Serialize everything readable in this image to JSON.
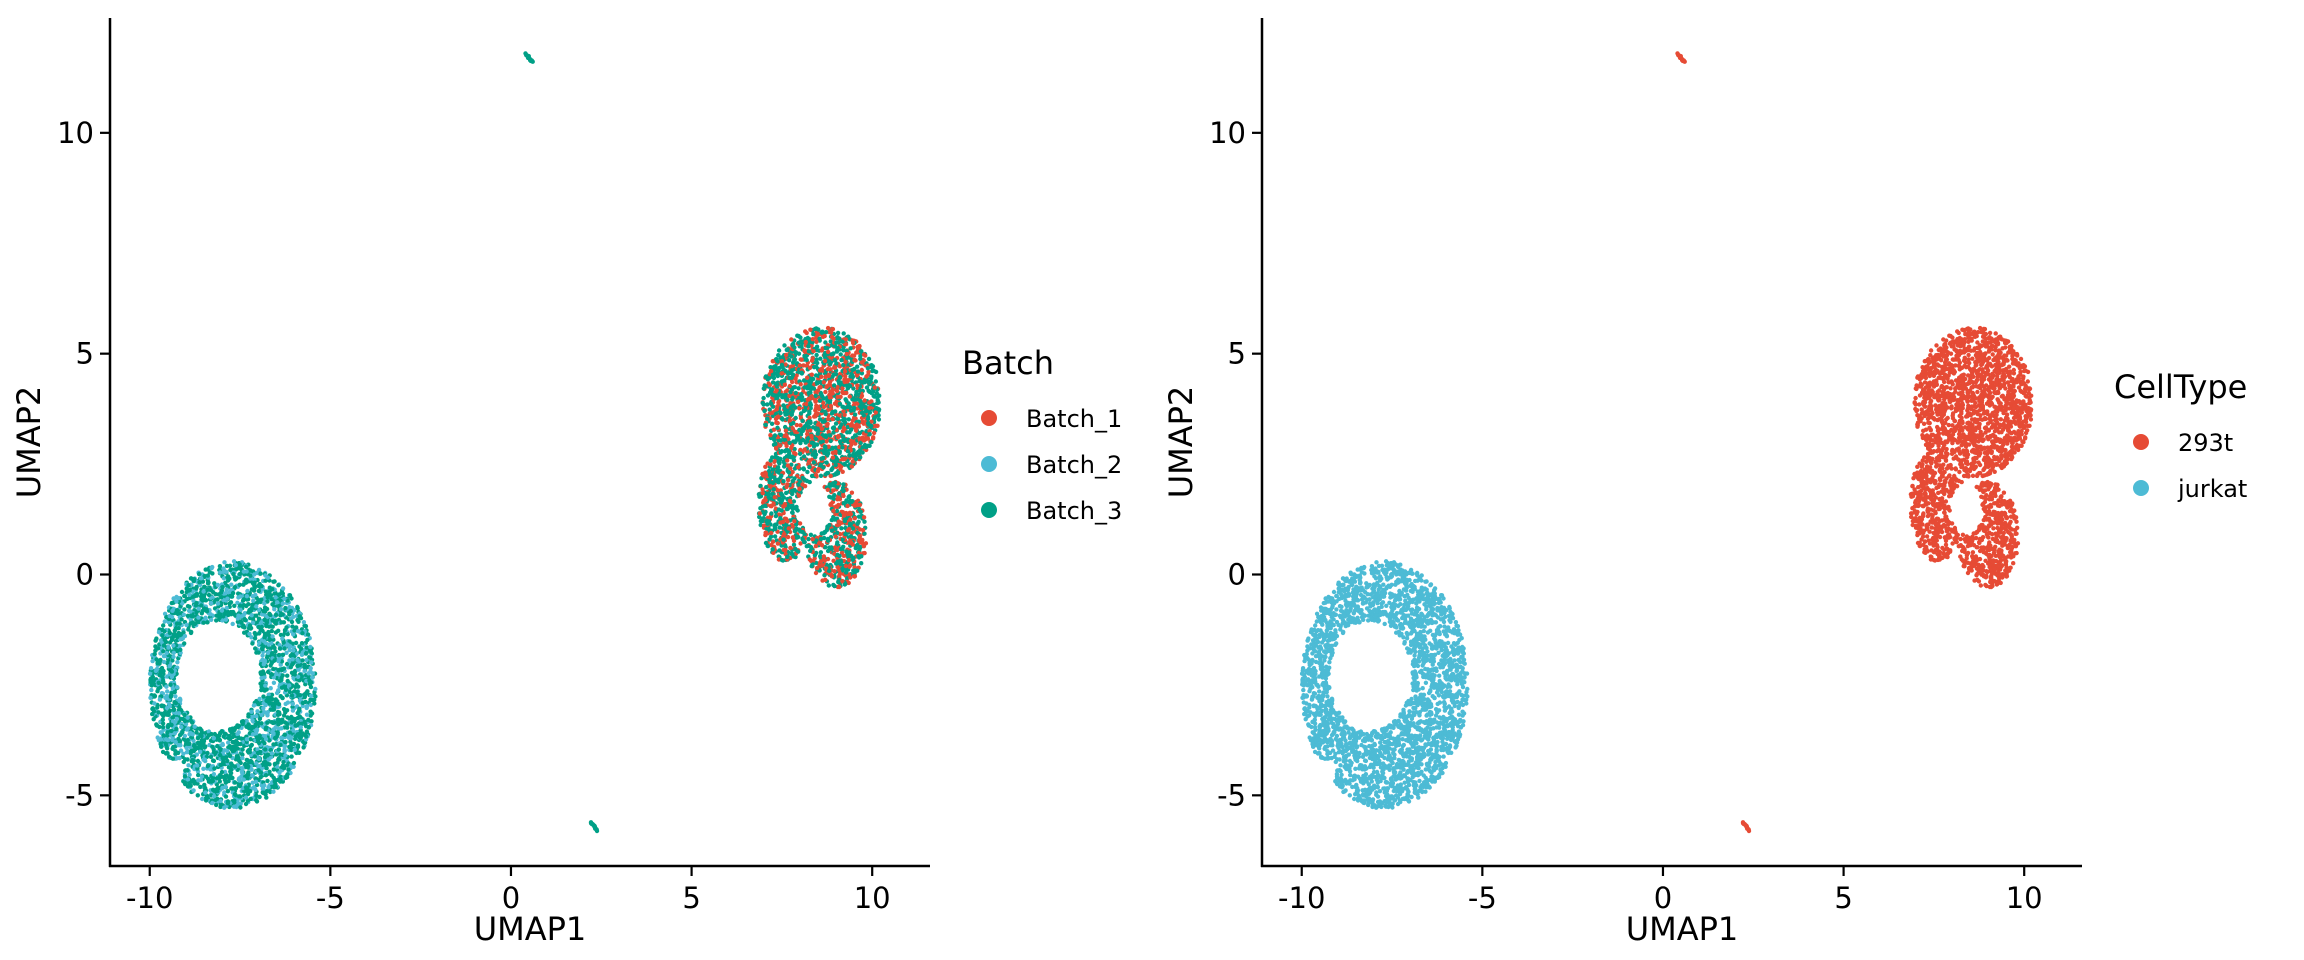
{
  "chart_data": [
    {
      "type": "scatter",
      "id": "batch-umap",
      "title": "",
      "xlabel": "UMAP1",
      "ylabel": "UMAP2",
      "xlim": [
        -11.1,
        11.6
      ],
      "ylim": [
        -6.6,
        12.6
      ],
      "xticks": [
        -10,
        -5,
        0,
        5,
        10
      ],
      "yticks": [
        -5,
        0,
        5,
        10
      ],
      "xtick_labels": [
        "-10",
        "-5",
        "0",
        "5",
        "10"
      ],
      "ytick_labels": [
        "-5",
        "0",
        "5",
        "10"
      ],
      "grid": false,
      "legend": {
        "title": "Batch",
        "position": "right",
        "entries": [
          {
            "label": "Batch_1",
            "color": "#E64B35"
          },
          {
            "label": "Batch_2",
            "color": "#4DBBD5"
          },
          {
            "label": "Batch_3",
            "color": "#00A087"
          }
        ]
      },
      "clusters": [
        {
          "cx": 8.5,
          "cy": 2.6,
          "rx": 1.7,
          "ry": 3.0,
          "n": 2400,
          "mix": [
            0.42,
            0.0,
            0.58
          ],
          "shape": "blob-right"
        },
        {
          "cx": -7.7,
          "cy": -2.5,
          "rx": 2.3,
          "ry": 2.8,
          "n": 2600,
          "mix": [
            0.0,
            0.35,
            0.65
          ],
          "shape": "ring-left"
        },
        {
          "cx": 0.5,
          "cy": 11.7,
          "rx": 0.08,
          "ry": 0.08,
          "n": 15,
          "mix": [
            0.0,
            0.0,
            1.0
          ],
          "shape": "dot"
        },
        {
          "cx": 2.3,
          "cy": -5.7,
          "rx": 0.08,
          "ry": 0.08,
          "n": 15,
          "mix": [
            0.0,
            0.0,
            1.0
          ],
          "shape": "dot"
        }
      ]
    },
    {
      "type": "scatter",
      "id": "celltype-umap",
      "title": "",
      "xlabel": "UMAP1",
      "ylabel": "UMAP2",
      "xlim": [
        -11.1,
        11.6
      ],
      "ylim": [
        -6.6,
        12.6
      ],
      "xticks": [
        -10,
        -5,
        0,
        5,
        10
      ],
      "yticks": [
        -5,
        0,
        5,
        10
      ],
      "xtick_labels": [
        "-10",
        "-5",
        "0",
        "5",
        "10"
      ],
      "ytick_labels": [
        "-5",
        "0",
        "5",
        "10"
      ],
      "grid": false,
      "legend": {
        "title": "CellType",
        "position": "right",
        "entries": [
          {
            "label": "293t",
            "color": "#E64B35"
          },
          {
            "label": "jurkat",
            "color": "#4DBBD5"
          }
        ]
      },
      "clusters": [
        {
          "cx": 8.5,
          "cy": 2.6,
          "rx": 1.7,
          "ry": 3.0,
          "n": 2400,
          "mix": [
            1.0,
            0.0
          ],
          "shape": "blob-right"
        },
        {
          "cx": -7.7,
          "cy": -2.5,
          "rx": 2.3,
          "ry": 2.8,
          "n": 2600,
          "mix": [
            0.0,
            1.0
          ],
          "shape": "ring-left"
        },
        {
          "cx": 0.5,
          "cy": 11.7,
          "rx": 0.08,
          "ry": 0.08,
          "n": 15,
          "mix": [
            1.0,
            0.0
          ],
          "shape": "dot"
        },
        {
          "cx": 2.3,
          "cy": -5.7,
          "rx": 0.08,
          "ry": 0.08,
          "n": 15,
          "mix": [
            1.0,
            0.0
          ],
          "shape": "dot"
        }
      ]
    }
  ]
}
